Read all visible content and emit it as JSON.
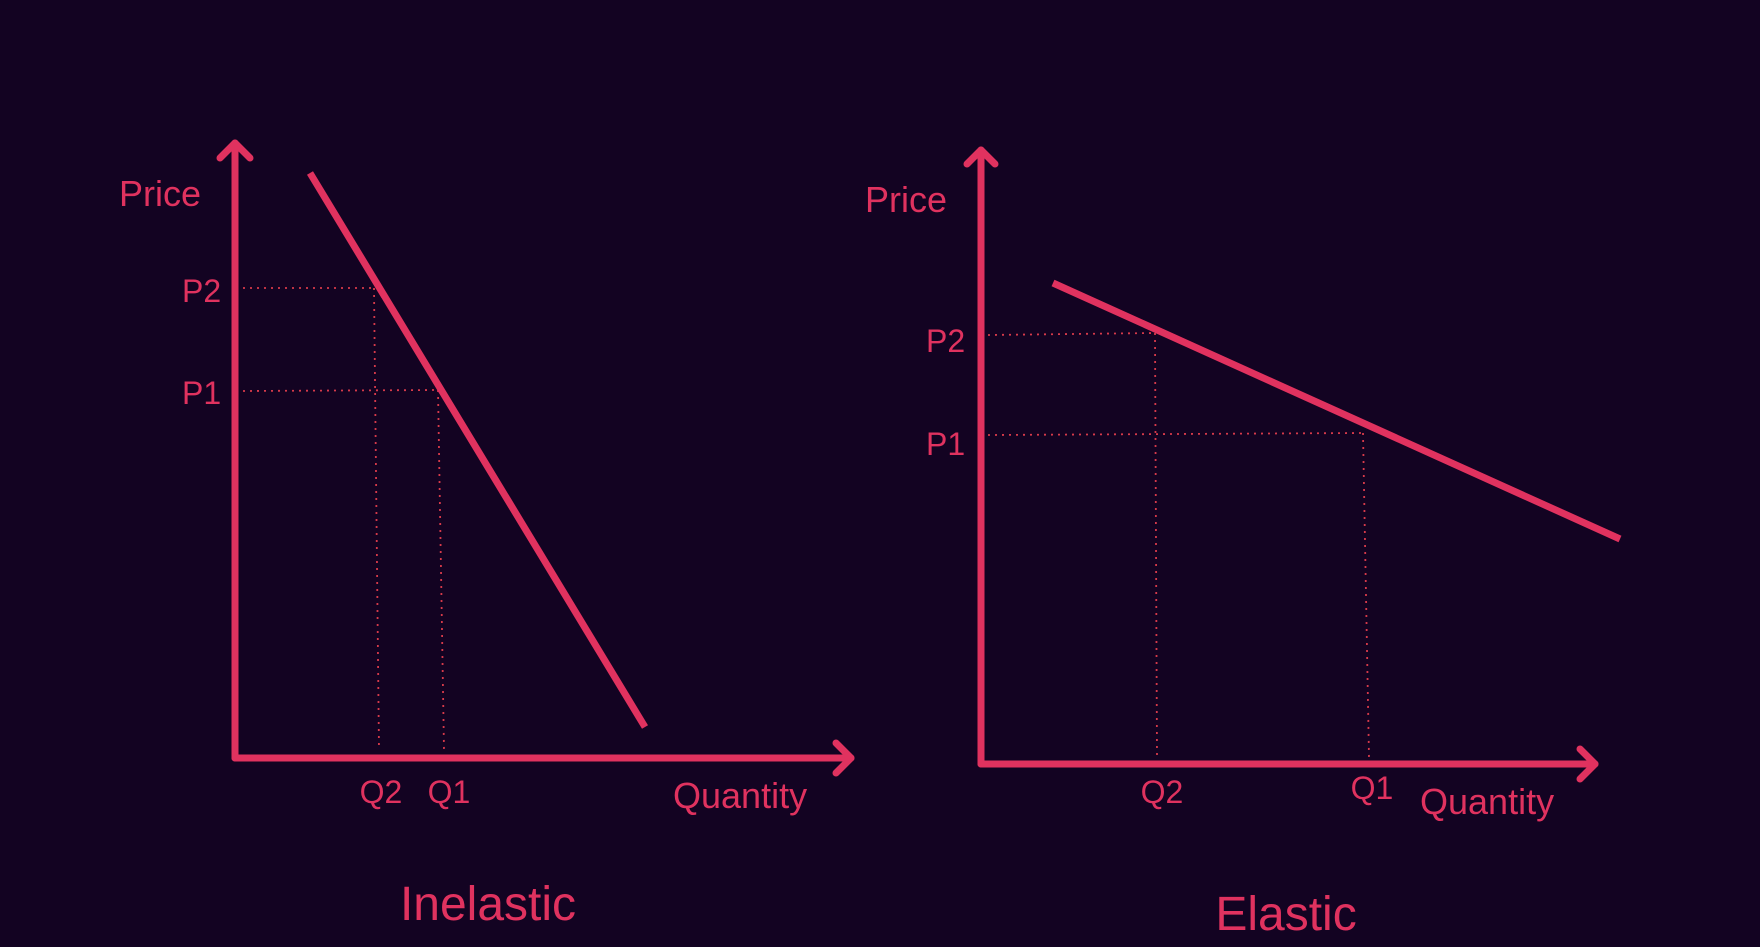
{
  "colors": {
    "background": "#130322",
    "accent": "#e0325f",
    "guide": "#d63a4a"
  },
  "diagrams": [
    {
      "id": "inelastic",
      "title": "Inelastic",
      "y_axis_label": "Price",
      "x_axis_label": "Quantity",
      "price_labels": [
        "P2",
        "P1"
      ],
      "quantity_labels": [
        "Q2",
        "Q1"
      ]
    },
    {
      "id": "elastic",
      "title": "Elastic",
      "y_axis_label": "Price",
      "x_axis_label": "Quantity",
      "price_labels": [
        "P2",
        "P1"
      ],
      "quantity_labels": [
        "Q2",
        "Q1"
      ]
    }
  ]
}
